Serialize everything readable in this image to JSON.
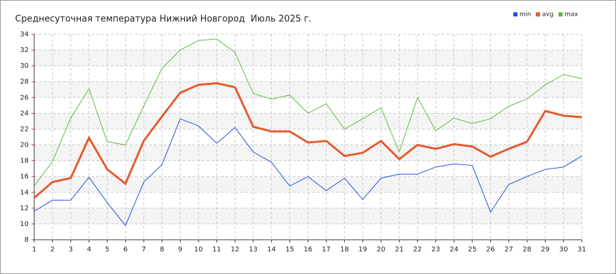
{
  "chart_data": {
    "type": "line",
    "title": "Среднесуточная температура Нижний Новгород  Июль 2025 г.",
    "x": [
      1,
      2,
      3,
      4,
      5,
      6,
      7,
      8,
      9,
      10,
      11,
      12,
      13,
      14,
      15,
      16,
      17,
      18,
      19,
      20,
      21,
      22,
      23,
      24,
      25,
      26,
      27,
      28,
      29,
      30,
      31
    ],
    "series": [
      {
        "name": "min",
        "color": "#1f4fd8",
        "values": [
          11.6,
          13.0,
          13.0,
          15.9,
          12.7,
          9.8,
          15.3,
          17.5,
          23.3,
          22.4,
          20.2,
          22.2,
          19.1,
          17.8,
          14.8,
          16.0,
          14.2,
          15.8,
          13.1,
          15.8,
          16.3,
          16.3,
          17.2,
          17.6,
          17.4,
          11.5,
          15.0,
          16.0,
          16.9,
          17.2,
          18.6
        ]
      },
      {
        "name": "avg",
        "color": "#e5592b",
        "values": [
          13.3,
          15.3,
          15.8,
          20.9,
          16.9,
          15.1,
          20.5,
          23.6,
          26.6,
          27.6,
          27.8,
          27.3,
          22.3,
          21.7,
          21.7,
          20.3,
          20.5,
          18.6,
          19.0,
          20.5,
          18.2,
          20.0,
          19.5,
          20.1,
          19.8,
          18.5,
          19.5,
          20.4,
          24.3,
          23.7,
          23.5
        ]
      },
      {
        "name": "max",
        "color": "#5db843",
        "values": [
          14.8,
          17.9,
          23.4,
          27.1,
          20.4,
          20.0,
          24.9,
          29.7,
          32.0,
          33.2,
          33.4,
          31.7,
          26.5,
          25.8,
          26.3,
          24.0,
          25.2,
          22.0,
          23.3,
          24.7,
          19.1,
          26.0,
          21.8,
          23.4,
          22.7,
          23.3,
          24.9,
          25.8,
          27.6,
          28.9,
          28.4
        ]
      }
    ],
    "xlim": [
      1,
      31
    ],
    "xticks": [
      1,
      2,
      3,
      4,
      5,
      6,
      7,
      8,
      9,
      10,
      11,
      12,
      13,
      14,
      15,
      16,
      17,
      18,
      19,
      20,
      21,
      22,
      23,
      24,
      25,
      26,
      27,
      28,
      29,
      30,
      31
    ],
    "ylim": [
      8,
      34
    ],
    "yticks": [
      8,
      10,
      12,
      14,
      16,
      18,
      20,
      22,
      24,
      26,
      28,
      30,
      32,
      34
    ],
    "grid": true,
    "legend": "top-right"
  }
}
